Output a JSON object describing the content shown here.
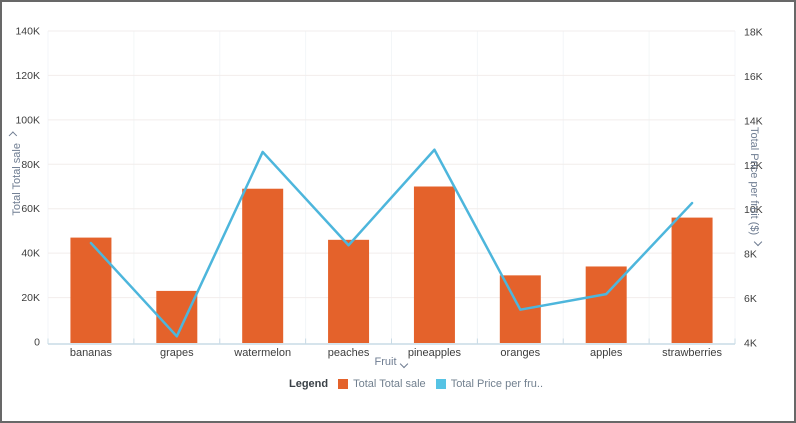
{
  "chart_data": {
    "type": "combo-bar-line",
    "categories": [
      "bananas",
      "grapes",
      "watermelon",
      "peaches",
      "pineapples",
      "oranges",
      "apples",
      "strawberries"
    ],
    "series": [
      {
        "name": "Total Total sale",
        "type": "bar",
        "axis": "left",
        "color": "#e4622b",
        "values": [
          47000,
          23000,
          69000,
          46000,
          70000,
          30000,
          34000,
          56000
        ]
      },
      {
        "name": "Total Price per fruit ($)",
        "type": "line",
        "axis": "right",
        "color": "#4db6dc",
        "values": [
          8500,
          4300,
          12600,
          8400,
          12700,
          5500,
          6200,
          10300
        ]
      }
    ],
    "left_axis": {
      "title": "Total Total sale",
      "min": 0,
      "max": 140000,
      "tick_step": 20000,
      "tick_labels": [
        "0",
        "20K",
        "40K",
        "60K",
        "80K",
        "100K",
        "120K",
        "140K"
      ]
    },
    "right_axis": {
      "title": "Total Price per fruit ($)",
      "min": 4000,
      "max": 18000,
      "tick_step": 2000,
      "tick_labels": [
        "4K",
        "6K",
        "8K",
        "10K",
        "12K",
        "14K",
        "16K",
        "18K"
      ]
    },
    "x_axis": {
      "title": "Fruit"
    },
    "grid": "horizontal-on_faint-vertical",
    "legend_position": "bottom"
  },
  "legend": {
    "label": "Legend",
    "items": [
      {
        "label": "Total Total sale",
        "color": "#e4622b"
      },
      {
        "label": "Total Price per fru..",
        "color": "#56c3e4"
      }
    ]
  },
  "colors": {
    "bar": "#e4622b",
    "line": "#4db6dc",
    "axis_title": "#6e7c91",
    "tick_label": "#3d3d3d",
    "gridline": "#f2edec",
    "vertical_gridline": "#f3f6f8",
    "baseline": "#c9dbe6",
    "frame_border": "#686868"
  }
}
